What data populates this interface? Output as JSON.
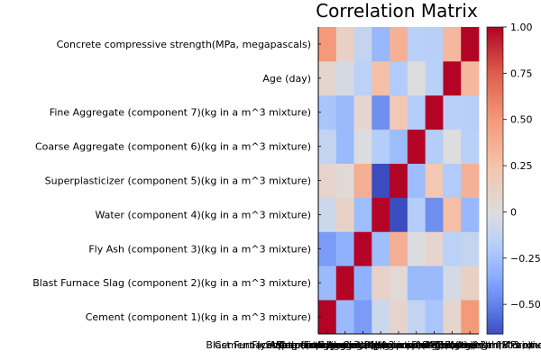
{
  "chart_data": {
    "type": "heatmap",
    "title": "Correlation Matrix",
    "variables": [
      "Cement (component 1)(kg in a m^3 mixture)",
      "Blast Furnace Slag (component 2)(kg in a m^3 mixture)",
      "Fly Ash (component 3)(kg in a m^3 mixture)",
      "Water  (component 4)(kg in a m^3 mixture)",
      "Superplasticizer (component 5)(kg in a m^3 mixture)",
      "Coarse Aggregate  (component 6)(kg in a m^3 mixture)",
      "Fine Aggregate (component 7)(kg in a m^3 mixture)",
      "Age (day)",
      "Concrete compressive strength(MPa, megapascals) "
    ],
    "matrix": [
      [
        1.0,
        -0.28,
        -0.4,
        -0.08,
        0.09,
        -0.11,
        -0.22,
        0.08,
        0.5
      ],
      [
        -0.28,
        1.0,
        -0.32,
        0.11,
        0.04,
        -0.28,
        -0.28,
        -0.04,
        0.13
      ],
      [
        -0.4,
        -0.32,
        1.0,
        -0.26,
        0.38,
        -0.01,
        0.08,
        -0.15,
        -0.11
      ],
      [
        -0.08,
        0.11,
        -0.26,
        1.0,
        -0.66,
        -0.18,
        -0.45,
        0.28,
        -0.29
      ],
      [
        0.09,
        0.04,
        0.38,
        -0.66,
        1.0,
        -0.27,
        0.22,
        -0.19,
        0.37
      ],
      [
        -0.11,
        -0.28,
        -0.01,
        -0.18,
        -0.27,
        1.0,
        -0.18,
        -0.0,
        -0.16
      ],
      [
        -0.22,
        -0.28,
        0.08,
        -0.45,
        0.22,
        -0.18,
        1.0,
        -0.16,
        -0.17
      ],
      [
        0.08,
        -0.04,
        -0.15,
        0.28,
        -0.19,
        -0.0,
        -0.16,
        1.0,
        0.33
      ],
      [
        0.5,
        0.13,
        -0.11,
        -0.29,
        0.37,
        -0.16,
        -0.17,
        0.33,
        1.0
      ]
    ],
    "colorbar": {
      "colormap": "coolwarm",
      "range": [
        -0.66,
        1.0
      ],
      "ticks": [
        -0.5,
        -0.25,
        0,
        0.25,
        0.5,
        0.75,
        1.0
      ],
      "tick_labels": [
        "−0.50",
        "−0.25",
        "0",
        "0.25",
        "0.50",
        "0.75",
        "1.00"
      ]
    },
    "grid": false,
    "legend": "colorbar-right"
  }
}
